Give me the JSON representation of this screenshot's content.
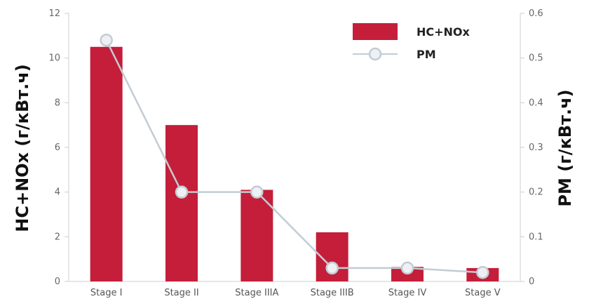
{
  "chart_data": {
    "type": "bar",
    "categories": [
      "Stage I",
      "Stage II",
      "Stage IIIA",
      "Stage IIIB",
      "Stage IV",
      "Stage V"
    ],
    "series": [
      {
        "name": "HC+NOx",
        "type": "bar",
        "axis": "left",
        "color": "#c41e3a",
        "values": [
          10.5,
          7.0,
          4.1,
          2.2,
          0.65,
          0.6
        ]
      },
      {
        "name": "PM",
        "type": "line",
        "axis": "right",
        "color": "#c3ccd4",
        "values": [
          0.54,
          0.2,
          0.2,
          0.03,
          0.03,
          0.02
        ]
      }
    ],
    "ylabel": "HC+NOx (г/кВт.ч)",
    "ylim": [
      0,
      12
    ],
    "yticks": [
      0,
      2,
      4,
      6,
      8,
      10,
      12
    ],
    "y2label": "PM (г/кВт.ч)",
    "y2lim": [
      0,
      0.6
    ],
    "y2ticks": [
      0,
      0.1,
      0.2,
      0.3,
      0.4,
      0.5,
      0.6
    ],
    "y2ticklabels": [
      "0",
      "0.1",
      "0.2",
      "0.3",
      "0.4",
      "0.5",
      "0.6"
    ],
    "grid": false,
    "legend": "top-right"
  }
}
